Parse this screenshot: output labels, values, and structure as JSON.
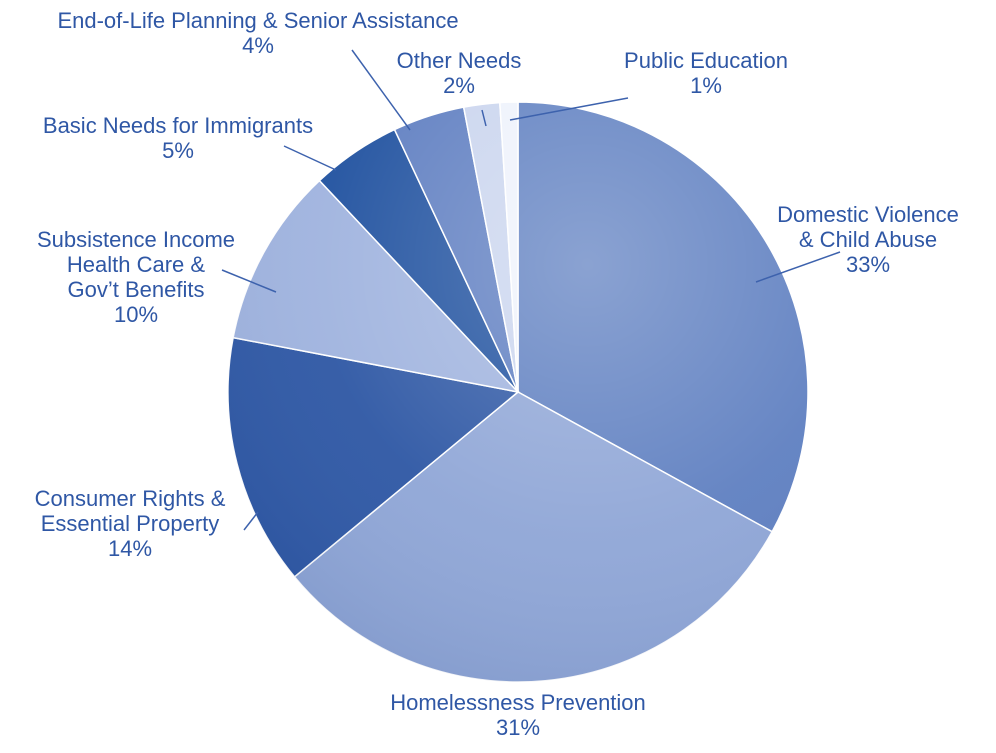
{
  "chart_data": {
    "type": "pie",
    "slices": [
      {
        "label_lines": [
          "Domestic Violence",
          "& Child Abuse"
        ],
        "value": 33,
        "value_label": "33%",
        "color": "#5d7ec0"
      },
      {
        "label_lines": [
          "Homelessness Prevention"
        ],
        "value": 31,
        "value_label": "31%",
        "color": "#8ea5d6"
      },
      {
        "label_lines": [
          "Consumer Rights &",
          "Essential Property"
        ],
        "value": 14,
        "value_label": "14%",
        "color": "#2b55a3"
      },
      {
        "label_lines": [
          "Subsistence Income",
          "Health Care &",
          "Gov’t Benefits"
        ],
        "value": 10,
        "value_label": "10%",
        "color": "#9eb2de"
      },
      {
        "label_lines": [
          "Basic Needs for Immigrants"
        ],
        "value": 5,
        "value_label": "5%",
        "color": "#1d4f9e"
      },
      {
        "label_lines": [
          "End-of-Life Planning & Senior Assistance"
        ],
        "value": 4,
        "value_label": "4%",
        "color": "#5c7cc0"
      },
      {
        "label_lines": [
          "Other Needs"
        ],
        "value": 2,
        "value_label": "2%",
        "color": "#c9d4ee"
      },
      {
        "label_lines": [
          "Public Education"
        ],
        "value": 1,
        "value_label": "1%",
        "color": "#eef2fb"
      }
    ],
    "text_color": "#2f57a5",
    "leader_color": "#3d62ad"
  }
}
